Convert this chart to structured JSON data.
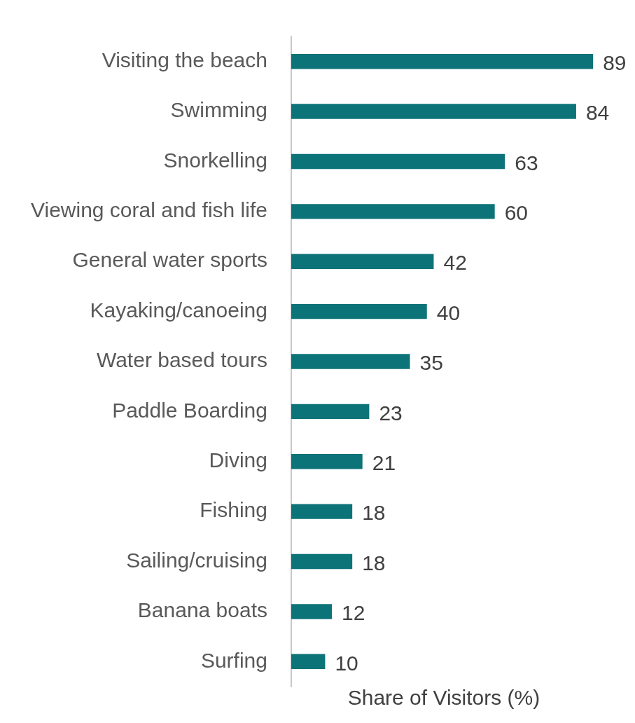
{
  "chart_data": {
    "type": "bar",
    "orientation": "horizontal",
    "categories": [
      "Visiting the beach",
      "Swimming",
      "Snorkelling",
      "Viewing coral and fish life",
      "General water sports",
      "Kayaking/canoeing",
      "Water based tours",
      "Paddle Boarding",
      "Diving",
      "Fishing",
      "Sailing/cruising",
      "Banana boats",
      "Surfing"
    ],
    "values": [
      89,
      84,
      63,
      60,
      42,
      40,
      35,
      23,
      21,
      18,
      18,
      12,
      10
    ],
    "color": "#0c7378",
    "xlabel": "Share of Visitors (%)",
    "tick_labels": "y",
    "data_labels": true
  }
}
